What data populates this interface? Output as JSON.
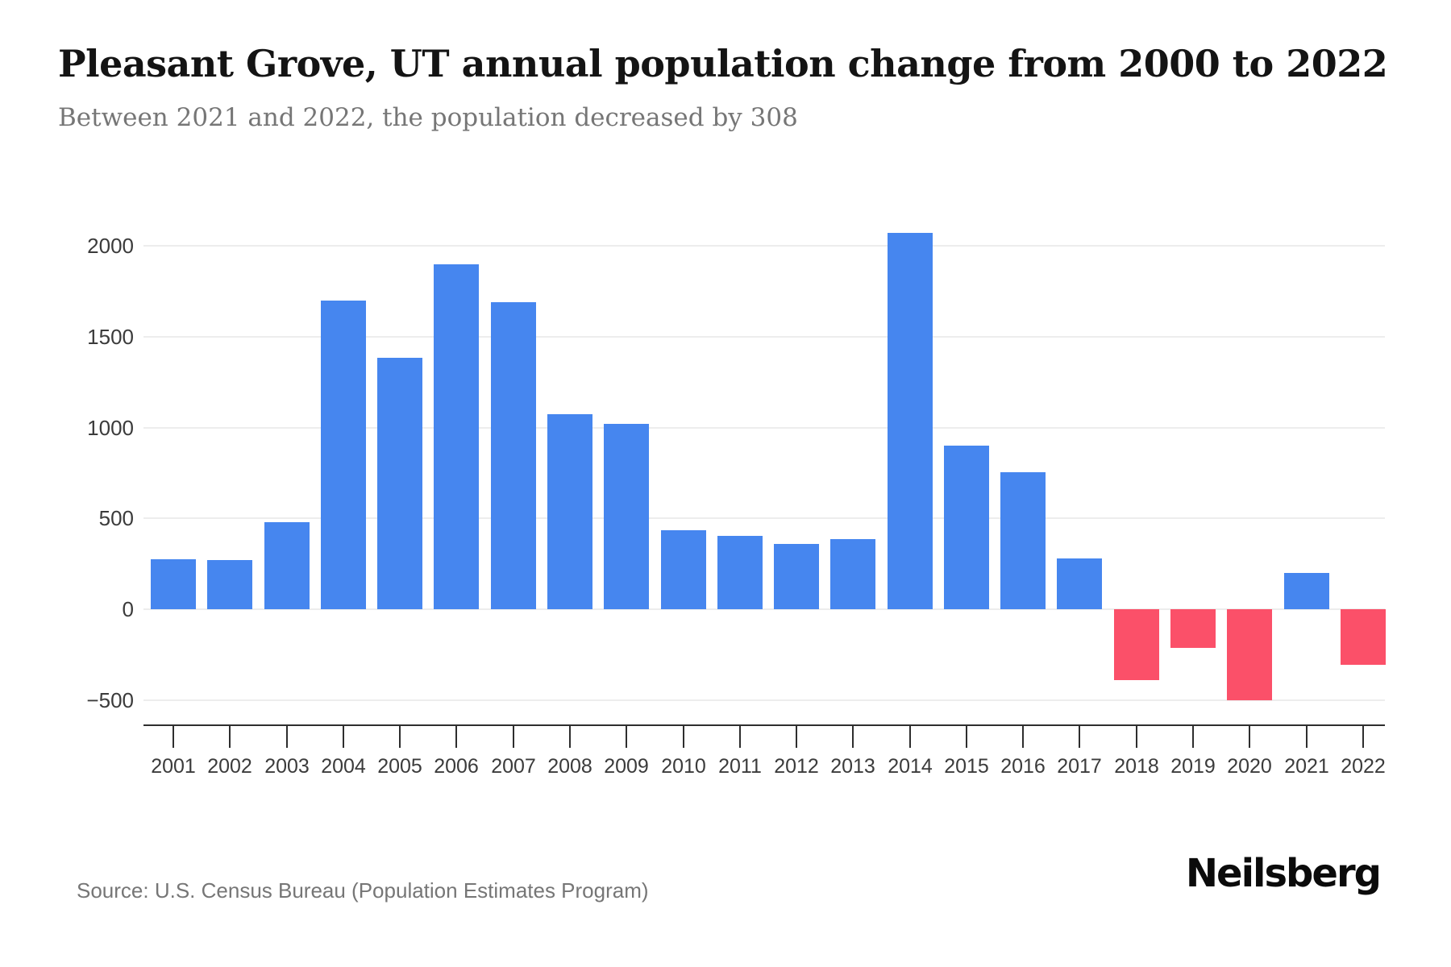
{
  "page": {
    "title": "Pleasant Grove, UT annual population change from 2000 to 2022",
    "subtitle": "Between 2021 and 2022, the population decreased by 308",
    "source": "Source: U.S. Census Bureau (Population Estimates Program)",
    "brand": "Neilsberg"
  },
  "colors": {
    "positive_bar": "#4686EF",
    "negative_bar": "#FB5069",
    "grid_line": "#ededed",
    "axis_line": "#2e2e2e",
    "tick_text": "#3b3b3b",
    "muted_text": "#767676",
    "title_text": "#141414"
  },
  "chart_data": {
    "type": "bar",
    "title": "Pleasant Grove, UT annual population change from 2000 to 2022",
    "subtitle": "Between 2021 and 2022, the population decreased by 308",
    "xlabel": "",
    "ylabel": "",
    "categories": [
      "2001",
      "2002",
      "2003",
      "2004",
      "2005",
      "2006",
      "2007",
      "2008",
      "2009",
      "2010",
      "2011",
      "2012",
      "2013",
      "2014",
      "2015",
      "2016",
      "2017",
      "2018",
      "2019",
      "2020",
      "2021",
      "2022"
    ],
    "values": [
      275,
      270,
      480,
      1700,
      1385,
      1900,
      1690,
      1075,
      1020,
      435,
      405,
      360,
      385,
      2070,
      900,
      755,
      280,
      -390,
      -215,
      -500,
      200,
      -308
    ],
    "yticks": [
      2000,
      1500,
      1000,
      500,
      0,
      -500
    ],
    "ytick_labels": [
      "2000",
      "1500",
      "1000",
      "500",
      "0",
      "−500"
    ],
    "ylim": [
      -560,
      2140
    ],
    "grid": "horizontal",
    "legend": "none",
    "bar_colors": {
      "positive": "#4686EF",
      "negative": "#FB5069"
    }
  }
}
